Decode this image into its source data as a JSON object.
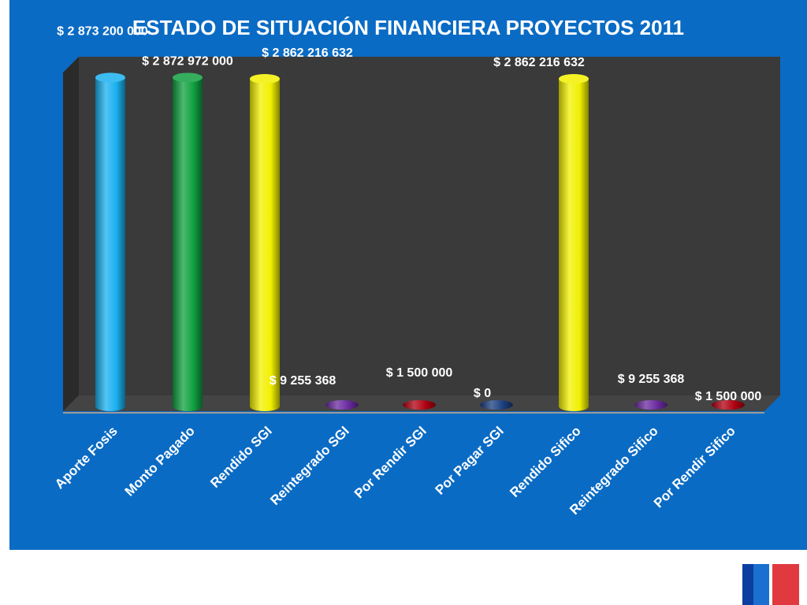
{
  "chart_data": {
    "type": "bar",
    "title": "ESTADO DE SITUACIÓN FINANCIERA PROYECTOS 2011",
    "categories": [
      "Aporte Fosis",
      "Monto Pagado",
      "Rendido SGI",
      "Reintegrado SGI",
      "Por Rendir SGI",
      "Por Pagar SGI",
      "Rendido Sifico",
      "Reintegrado Sifico",
      "Por Rendir Sifico"
    ],
    "values": [
      2873200000,
      2872972000,
      2862216632,
      9255368,
      1500000,
      0,
      2862216632,
      9255368,
      1500000
    ],
    "data_labels": [
      "$ 2 873 200 000",
      "$ 2 872 972 000",
      "$ 2 862 216 632",
      "$ 9 255 368",
      "$ 1 500 000",
      "$ 0",
      "$ 2 862 216 632",
      "$ 9 255 368",
      "$ 1 500 000"
    ],
    "colors": [
      "#1ab0ef",
      "#10a040",
      "#f2f000",
      "#6a2aa0",
      "#b00010",
      "#1a3f80",
      "#f2f000",
      "#6a2aa0",
      "#b00010"
    ],
    "ylim": [
      0,
      3000000000
    ],
    "grid": false,
    "legend": "none"
  },
  "theme": {
    "background": "#0a6bc4",
    "plot_wall": "#3a3a3a",
    "plot_side": "#2a2a2a",
    "plot_floor": "#444444",
    "text": "#ffffff"
  },
  "flag_colors": [
    "#0a3fa0",
    "#1a6fd0",
    "#ffffff",
    "#e03a40"
  ]
}
